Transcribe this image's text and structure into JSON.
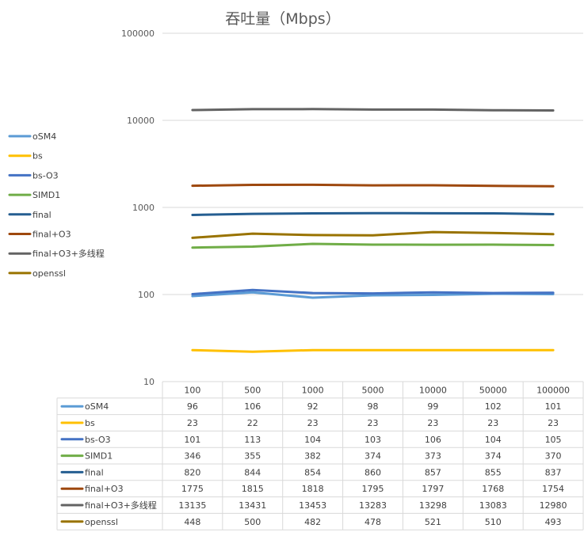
{
  "chart_data": {
    "type": "line",
    "title": "吞吐量（Mbps）",
    "x_scale": "category",
    "y_scale": "log",
    "ylim": [
      10,
      100000
    ],
    "y_ticks": [
      "10",
      "100",
      "1000",
      "10000",
      "100000"
    ],
    "y_tick_values": [
      10,
      100,
      1000,
      10000,
      100000
    ],
    "grid": true,
    "legend_position": "left",
    "data_table": true,
    "categories": [
      "100",
      "500",
      "1000",
      "5000",
      "10000",
      "50000",
      "100000"
    ],
    "series": [
      {
        "name": "oSM4",
        "color": "#5B9BD5",
        "values": [
          96,
          106,
          92,
          98,
          99,
          102,
          101
        ]
      },
      {
        "name": "bs",
        "color": "#FFC000",
        "values": [
          23,
          22,
          23,
          23,
          23,
          23,
          23
        ]
      },
      {
        "name": "bs-O3",
        "color": "#4472C4",
        "values": [
          101,
          113,
          104,
          103,
          106,
          104,
          105
        ]
      },
      {
        "name": "SIMD1",
        "color": "#70AD47",
        "values": [
          346,
          355,
          382,
          374,
          373,
          374,
          370
        ]
      },
      {
        "name": "final",
        "color": "#255E91",
        "values": [
          820,
          844,
          854,
          860,
          857,
          855,
          837
        ]
      },
      {
        "name": "final+O3",
        "color": "#9E480E",
        "values": [
          1775,
          1815,
          1818,
          1795,
          1797,
          1768,
          1754
        ]
      },
      {
        "name": "final+O3+多线程",
        "color": "#636363",
        "values": [
          13135,
          13431,
          13453,
          13283,
          13298,
          13083,
          12980
        ]
      },
      {
        "name": "openssl",
        "color": "#997300",
        "values": [
          448,
          500,
          482,
          478,
          521,
          510,
          493
        ]
      }
    ]
  }
}
